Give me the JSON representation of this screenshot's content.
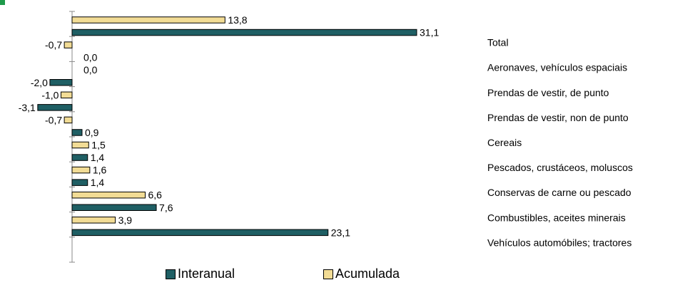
{
  "chart_data": {
    "type": "bar",
    "orientation": "horizontal",
    "categories": [
      "Total",
      "Aeronaves, vehículos espaciais",
      "Prendas de vestir, de punto",
      "Prendas de vestir, non de punto",
      "Cereais",
      "Pescados, crustáceos, moluscos",
      "Conservas de carne ou pescado",
      "Combustibles, aceites minerais",
      "Vehículos automóbiles; tractores"
    ],
    "series": [
      {
        "name": "Interanual",
        "color": "#1f5f64",
        "values": [
          31.1,
          0.0,
          -2.0,
          -3.1,
          0.9,
          1.4,
          1.4,
          7.6,
          23.1
        ],
        "labels": [
          "31,1",
          "0,0",
          "-2,0",
          "-3,1",
          "0,9",
          "1,4",
          "1,4",
          "7,6",
          "23,1"
        ]
      },
      {
        "name": "Acumulada",
        "color": "#f2dc95",
        "values": [
          13.8,
          -0.7,
          0.0,
          -1.0,
          -0.7,
          1.5,
          1.6,
          6.6,
          3.9
        ],
        "labels": [
          "13,8",
          "-0,7",
          "0,0",
          "-1,0",
          "-0,7",
          "1,5",
          "1,6",
          "6,6",
          "3,9"
        ]
      }
    ],
    "xlim": [
      -3.1,
      31.1
    ],
    "grid": false,
    "legend_position": "bottom",
    "title": "",
    "xlabel": "",
    "ylabel": ""
  }
}
